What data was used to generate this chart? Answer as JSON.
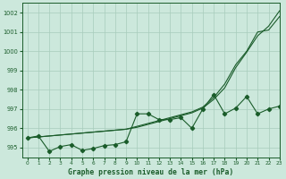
{
  "title": "Graphe pression niveau de la mer (hPa)",
  "background_color": "#cce8dc",
  "grid_color": "#a8ccbc",
  "line_color": "#1a5c2a",
  "xlim": [
    -0.5,
    23
  ],
  "ylim": [
    994.5,
    1002.5
  ],
  "yticks": [
    995,
    996,
    997,
    998,
    999,
    1000,
    1001,
    1002
  ],
  "xticks": [
    0,
    1,
    2,
    3,
    4,
    5,
    6,
    7,
    8,
    9,
    10,
    11,
    12,
    13,
    14,
    15,
    16,
    17,
    18,
    19,
    20,
    21,
    22,
    23
  ],
  "series": {
    "line_wavy": [
      995.5,
      995.6,
      994.8,
      995.0,
      995.1,
      994.85,
      995.0,
      995.1,
      995.15,
      995.2,
      996.8,
      996.75,
      996.5,
      996.5,
      996.55,
      996.05,
      997.0,
      997.7,
      996.8,
      997.0,
      997.7,
      996.8,
      997.0,
      997.2
    ],
    "line_steep1": [
      995.5,
      995.6,
      995.6,
      995.6,
      995.6,
      995.65,
      995.7,
      995.75,
      995.8,
      995.9,
      996.0,
      996.2,
      996.35,
      996.5,
      996.65,
      996.8,
      997.0,
      997.5,
      998.2,
      999.3,
      1000.0,
      1001.0,
      1001.2,
      1001.8
    ],
    "line_steep2": [
      995.5,
      995.5,
      995.5,
      995.5,
      995.5,
      995.55,
      995.6,
      995.65,
      995.7,
      995.8,
      995.9,
      996.1,
      996.25,
      996.4,
      996.55,
      996.7,
      996.9,
      997.3,
      998.0,
      999.1,
      999.8,
      1000.4,
      1001.05,
      1002.0
    ]
  },
  "series_wavy_full": [
    995.5,
    995.6,
    994.8,
    995.0,
    995.1,
    994.85,
    995.0,
    995.1,
    995.2,
    995.3,
    996.8,
    996.8,
    996.5,
    996.5,
    996.6,
    996.0,
    997.05,
    997.75,
    996.8,
    997.1,
    997.7,
    996.8,
    997.1,
    997.2
  ]
}
